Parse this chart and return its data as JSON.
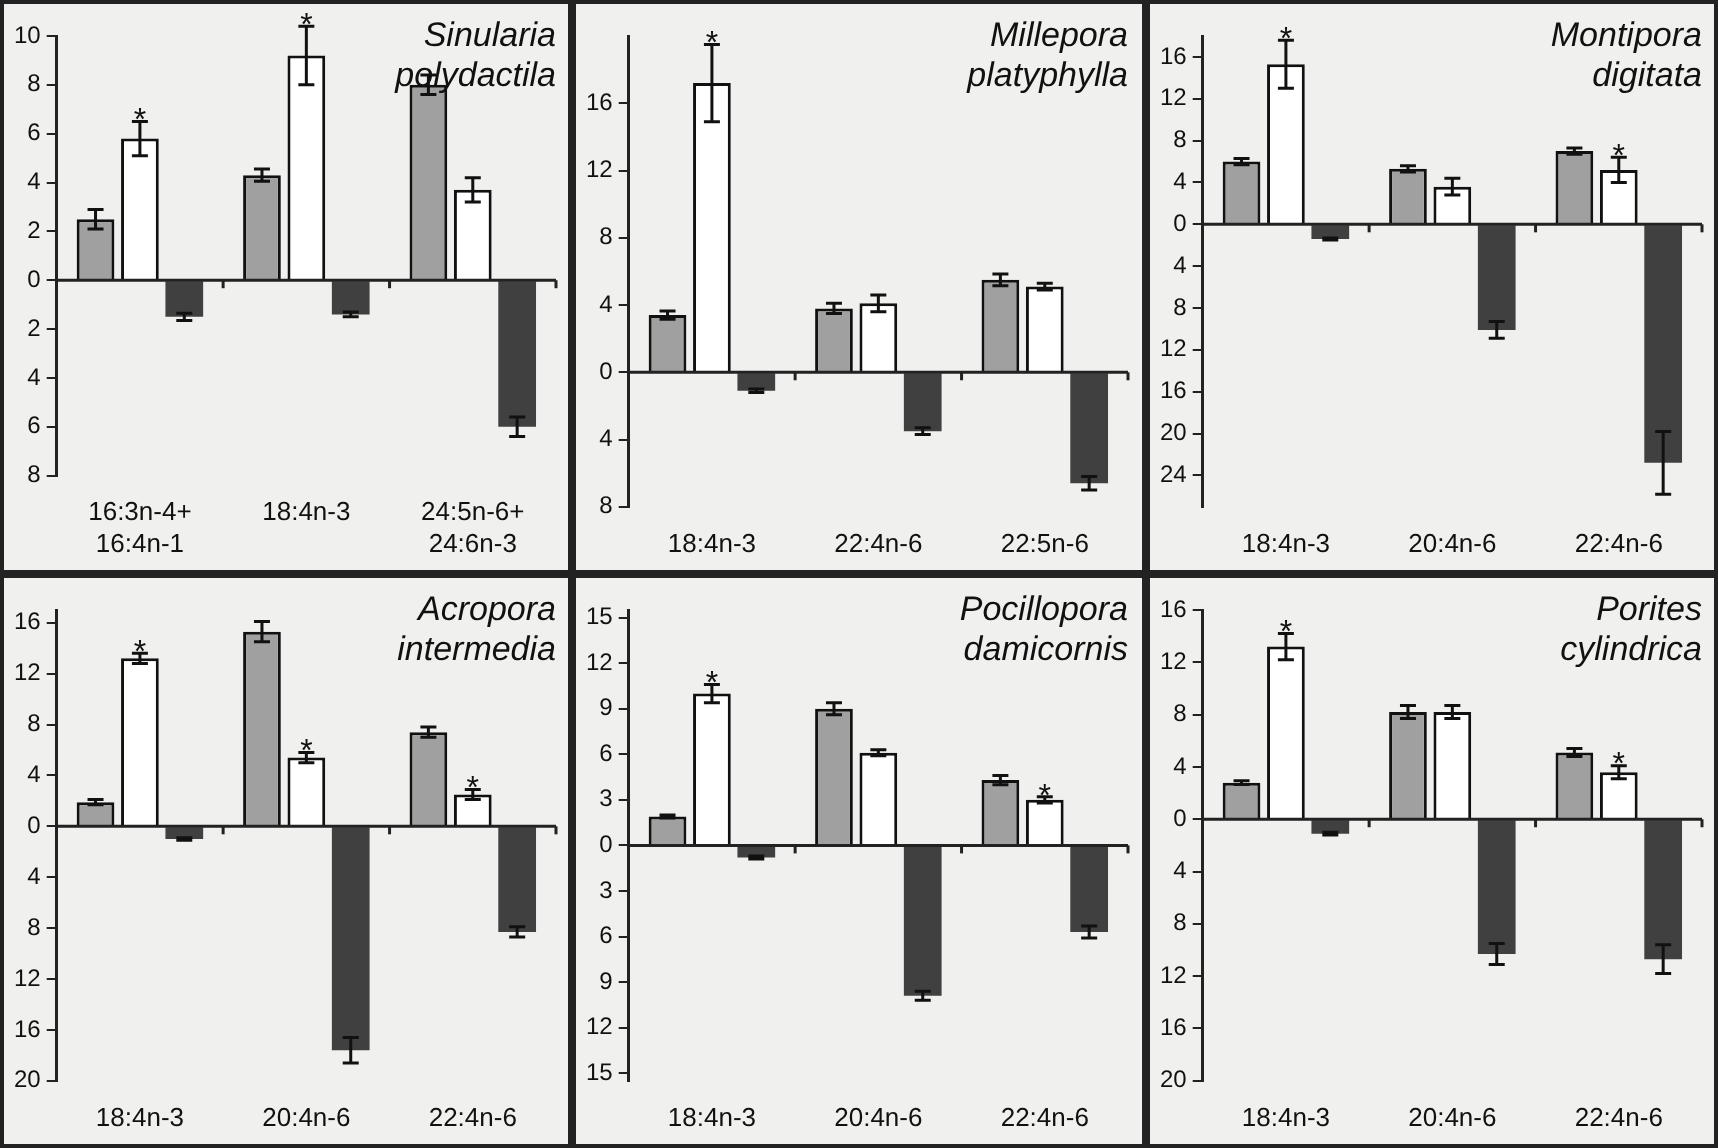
{
  "chart_data": [
    {
      "type": "bar",
      "title": "Sinularia polydactila",
      "ref_lines": [
        {
          "axis": "y",
          "value": 0,
          "color": "#222222"
        }
      ],
      "categories": [
        "16:3n-4+\n16:4n-1",
        "18:4n-3",
        "24:5n-6+\n24:6n-3"
      ],
      "grid": false,
      "legend": false,
      "ylim": [
        -8,
        10
      ],
      "yticks": [
        {
          "value": -8,
          "label": "8"
        },
        {
          "value": -6,
          "label": "6"
        },
        {
          "value": -4,
          "label": "4"
        },
        {
          "value": -2,
          "label": "2"
        },
        0,
        2,
        4,
        6,
        8,
        10
      ],
      "series": [
        {
          "color": "#a0a0a0",
          "values": [
            2.5,
            4.3,
            8.0
          ],
          "errors": [
            0.4,
            0.25,
            0.4
          ]
        },
        {
          "color": "#ffffff",
          "values": [
            5.8,
            9.2,
            3.7
          ],
          "errors": [
            0.7,
            1.2,
            0.5
          ]
        },
        {
          "color": "#404040",
          "values": [
            -1.5,
            -1.4,
            -6.0
          ],
          "errors": [
            0.15,
            0.1,
            0.4
          ]
        }
      ],
      "annotations": [
        {
          "text": "*",
          "x": "16:3n-4+\n16:4n-1",
          "y": 5.8
        },
        {
          "text": "*",
          "x": "18:4n-3",
          "y": 9.2
        }
      ]
    },
    {
      "type": "bar",
      "title": "Millepora platyphylla",
      "ref_lines": [
        {
          "axis": "y",
          "value": 0,
          "color": "#222222"
        }
      ],
      "categories": [
        "18:4n-3",
        "22:4n-6",
        "22:5n-6"
      ],
      "grid": false,
      "legend": false,
      "ylim": [
        -8,
        20
      ],
      "yticks": [
        {
          "value": -8,
          "label": "8"
        },
        {
          "value": -4,
          "label": "4"
        },
        0,
        4,
        8,
        12,
        16
      ],
      "series": [
        {
          "color": "#a0a0a0",
          "values": [
            3.4,
            3.8,
            5.5
          ],
          "errors": [
            0.25,
            0.3,
            0.35
          ]
        },
        {
          "color": "#ffffff",
          "values": [
            17.2,
            4.1,
            5.1
          ],
          "errors": [
            2.3,
            0.5,
            0.2
          ]
        },
        {
          "color": "#404040",
          "values": [
            -1.1,
            -3.5,
            -6.6
          ],
          "errors": [
            0.1,
            0.2,
            0.4
          ]
        }
      ],
      "annotations": [
        {
          "text": "*",
          "x": "18:4n-3",
          "y": 17.2
        }
      ]
    },
    {
      "type": "bar",
      "title": "Montipora digitata",
      "ref_lines": [
        {
          "axis": "y",
          "value": 0,
          "color": "#222222"
        }
      ],
      "categories": [
        "18:4n-3",
        "20:4n-6",
        "22:4n-6"
      ],
      "grid": false,
      "legend": false,
      "ylim": [
        -27,
        18
      ],
      "yticks": [
        {
          "value": -24,
          "label": "24"
        },
        {
          "value": -20,
          "label": "20"
        },
        {
          "value": -16,
          "label": "16"
        },
        {
          "value": -12,
          "label": "12"
        },
        {
          "value": -8,
          "label": "8"
        },
        {
          "value": -4,
          "label": "4"
        },
        0,
        4,
        8,
        12,
        16
      ],
      "series": [
        {
          "color": "#a0a0a0",
          "values": [
            6.0,
            5.3,
            7.0
          ],
          "errors": [
            0.3,
            0.3,
            0.3
          ]
        },
        {
          "color": "#ffffff",
          "values": [
            15.3,
            3.6,
            5.2
          ],
          "errors": [
            2.3,
            0.8,
            1.2
          ]
        },
        {
          "color": "#404040",
          "values": [
            -1.4,
            -10.1,
            -22.8
          ],
          "errors": [
            0.1,
            0.8,
            3.0
          ]
        }
      ],
      "annotations": [
        {
          "text": "*",
          "x": "18:4n-3",
          "y": 15.3
        },
        {
          "text": "*",
          "x": "22:4n-6",
          "y": 5.2
        }
      ]
    },
    {
      "type": "bar",
      "title": "Acropora intermedia",
      "ref_lines": [
        {
          "axis": "y",
          "value": 0,
          "color": "#222222"
        }
      ],
      "categories": [
        "18:4n-3",
        "20:4n-6",
        "22:4n-6"
      ],
      "grid": false,
      "legend": false,
      "ylim": [
        -20,
        17
      ],
      "yticks": [
        {
          "value": -20,
          "label": "20"
        },
        {
          "value": -16,
          "label": "16"
        },
        {
          "value": -12,
          "label": "12"
        },
        {
          "value": -8,
          "label": "8"
        },
        {
          "value": -4,
          "label": "4"
        },
        0,
        4,
        8,
        12,
        16
      ],
      "series": [
        {
          "color": "#a0a0a0",
          "values": [
            1.9,
            15.3,
            7.4
          ],
          "errors": [
            0.2,
            0.8,
            0.4
          ]
        },
        {
          "color": "#ffffff",
          "values": [
            13.2,
            5.4,
            2.5
          ],
          "errors": [
            0.4,
            0.4,
            0.4
          ]
        },
        {
          "color": "#404040",
          "values": [
            -1.0,
            -17.6,
            -8.3
          ],
          "errors": [
            0.1,
            1.0,
            0.4
          ]
        }
      ],
      "annotations": [
        {
          "text": "*",
          "x": "18:4n-3",
          "y": 13.2
        },
        {
          "text": "*",
          "x": "20:4n-6",
          "y": 5.4
        },
        {
          "text": "*",
          "x": "22:4n-6",
          "y": 2.5
        }
      ]
    },
    {
      "type": "bar",
      "title": "Pocillopora damicornis",
      "ref_lines": [
        {
          "axis": "y",
          "value": 0,
          "color": "#222222"
        }
      ],
      "categories": [
        "18:4n-3",
        "20:4n-6",
        "22:4n-6"
      ],
      "grid": false,
      "legend": false,
      "ylim": [
        -15.5,
        15.5
      ],
      "yticks": [
        {
          "value": -15,
          "label": "15"
        },
        {
          "value": -12,
          "label": "12"
        },
        {
          "value": -9,
          "label": "9"
        },
        {
          "value": -6,
          "label": "6"
        },
        {
          "value": -3,
          "label": "3"
        },
        0,
        3,
        6,
        9,
        12,
        15
      ],
      "series": [
        {
          "color": "#a0a0a0",
          "values": [
            1.9,
            9.0,
            4.3
          ],
          "errors": [
            0.1,
            0.4,
            0.3
          ]
        },
        {
          "color": "#ffffff",
          "values": [
            10.0,
            6.1,
            3.0
          ],
          "errors": [
            0.6,
            0.2,
            0.2
          ]
        },
        {
          "color": "#404040",
          "values": [
            -0.8,
            -9.9,
            -5.7
          ],
          "errors": [
            0.1,
            0.3,
            0.4
          ]
        }
      ],
      "annotations": [
        {
          "text": "*",
          "x": "18:4n-3",
          "y": 10.0
        },
        {
          "text": "*",
          "x": "22:4n-6",
          "y": 3.0
        }
      ]
    },
    {
      "type": "bar",
      "title": "Porites cylindrica",
      "ref_lines": [
        {
          "axis": "y",
          "value": 0,
          "color": "#222222"
        }
      ],
      "categories": [
        "18:4n-3",
        "20:4n-6",
        "22:4n-6"
      ],
      "grid": false,
      "legend": false,
      "ylim": [
        -20,
        16
      ],
      "yticks": [
        {
          "value": -20,
          "label": "20"
        },
        {
          "value": -16,
          "label": "16"
        },
        {
          "value": -12,
          "label": "12"
        },
        {
          "value": -8,
          "label": "8"
        },
        {
          "value": -4,
          "label": "4"
        },
        0,
        4,
        8,
        12,
        16
      ],
      "series": [
        {
          "color": "#a0a0a0",
          "values": [
            2.8,
            8.2,
            5.1
          ],
          "errors": [
            0.15,
            0.5,
            0.3
          ]
        },
        {
          "color": "#ffffff",
          "values": [
            13.2,
            8.2,
            3.6
          ],
          "errors": [
            1.0,
            0.5,
            0.5
          ]
        },
        {
          "color": "#404040",
          "values": [
            -1.1,
            -10.3,
            -10.7
          ],
          "errors": [
            0.1,
            0.8,
            1.1
          ]
        }
      ],
      "annotations": [
        {
          "text": "*",
          "x": "18:4n-3",
          "y": 13.2
        },
        {
          "text": "*",
          "x": "22:4n-6",
          "y": 3.6
        }
      ]
    }
  ]
}
